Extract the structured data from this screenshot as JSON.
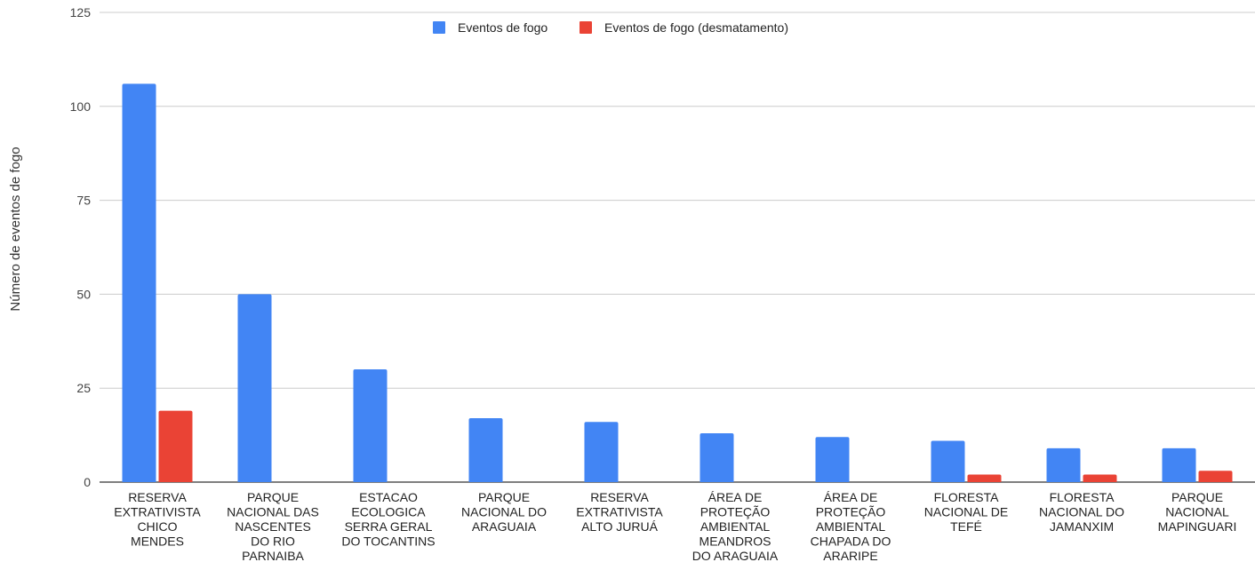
{
  "chart_data": {
    "type": "bar",
    "ylabel": "Número de eventos de fogo",
    "ylim": [
      0,
      125
    ],
    "yticks": [
      0,
      25,
      50,
      75,
      100,
      125
    ],
    "grid": true,
    "legend_position": "top",
    "categories": [
      [
        "RESERVA",
        "EXTRATIVISTA",
        "CHICO",
        "MENDES"
      ],
      [
        "PARQUE",
        "NACIONAL DAS",
        "NASCENTES",
        "DO RIO",
        "PARNAIBA"
      ],
      [
        "ESTACAO",
        "ECOLOGICA",
        "SERRA GERAL",
        "DO TOCANTINS"
      ],
      [
        "PARQUE",
        "NACIONAL DO",
        "ARAGUAIA"
      ],
      [
        "RESERVA",
        "EXTRATIVISTA",
        "ALTO JURUÁ"
      ],
      [
        "ÁREA DE",
        "PROTEÇÃO",
        "AMBIENTAL",
        "MEANDROS",
        "DO ARAGUAIA"
      ],
      [
        "ÁREA DE",
        "PROTEÇÃO",
        "AMBIENTAL",
        "CHAPADA DO",
        "ARARIPE"
      ],
      [
        "FLORESTA",
        "NACIONAL DE",
        "TEFÉ"
      ],
      [
        "FLORESTA",
        "NACIONAL DO",
        "JAMANXIM"
      ],
      [
        "PARQUE",
        "NACIONAL",
        "MAPINGUARI"
      ]
    ],
    "series": [
      {
        "name": "Eventos de fogo",
        "color": "#4285F4",
        "values": [
          106,
          50,
          30,
          17,
          16,
          13,
          12,
          11,
          9,
          9
        ]
      },
      {
        "name": "Eventos de fogo (desmatamento)",
        "color": "#EA4335",
        "values": [
          19,
          0,
          0,
          0,
          0,
          0,
          0,
          2,
          2,
          3
        ]
      }
    ]
  }
}
